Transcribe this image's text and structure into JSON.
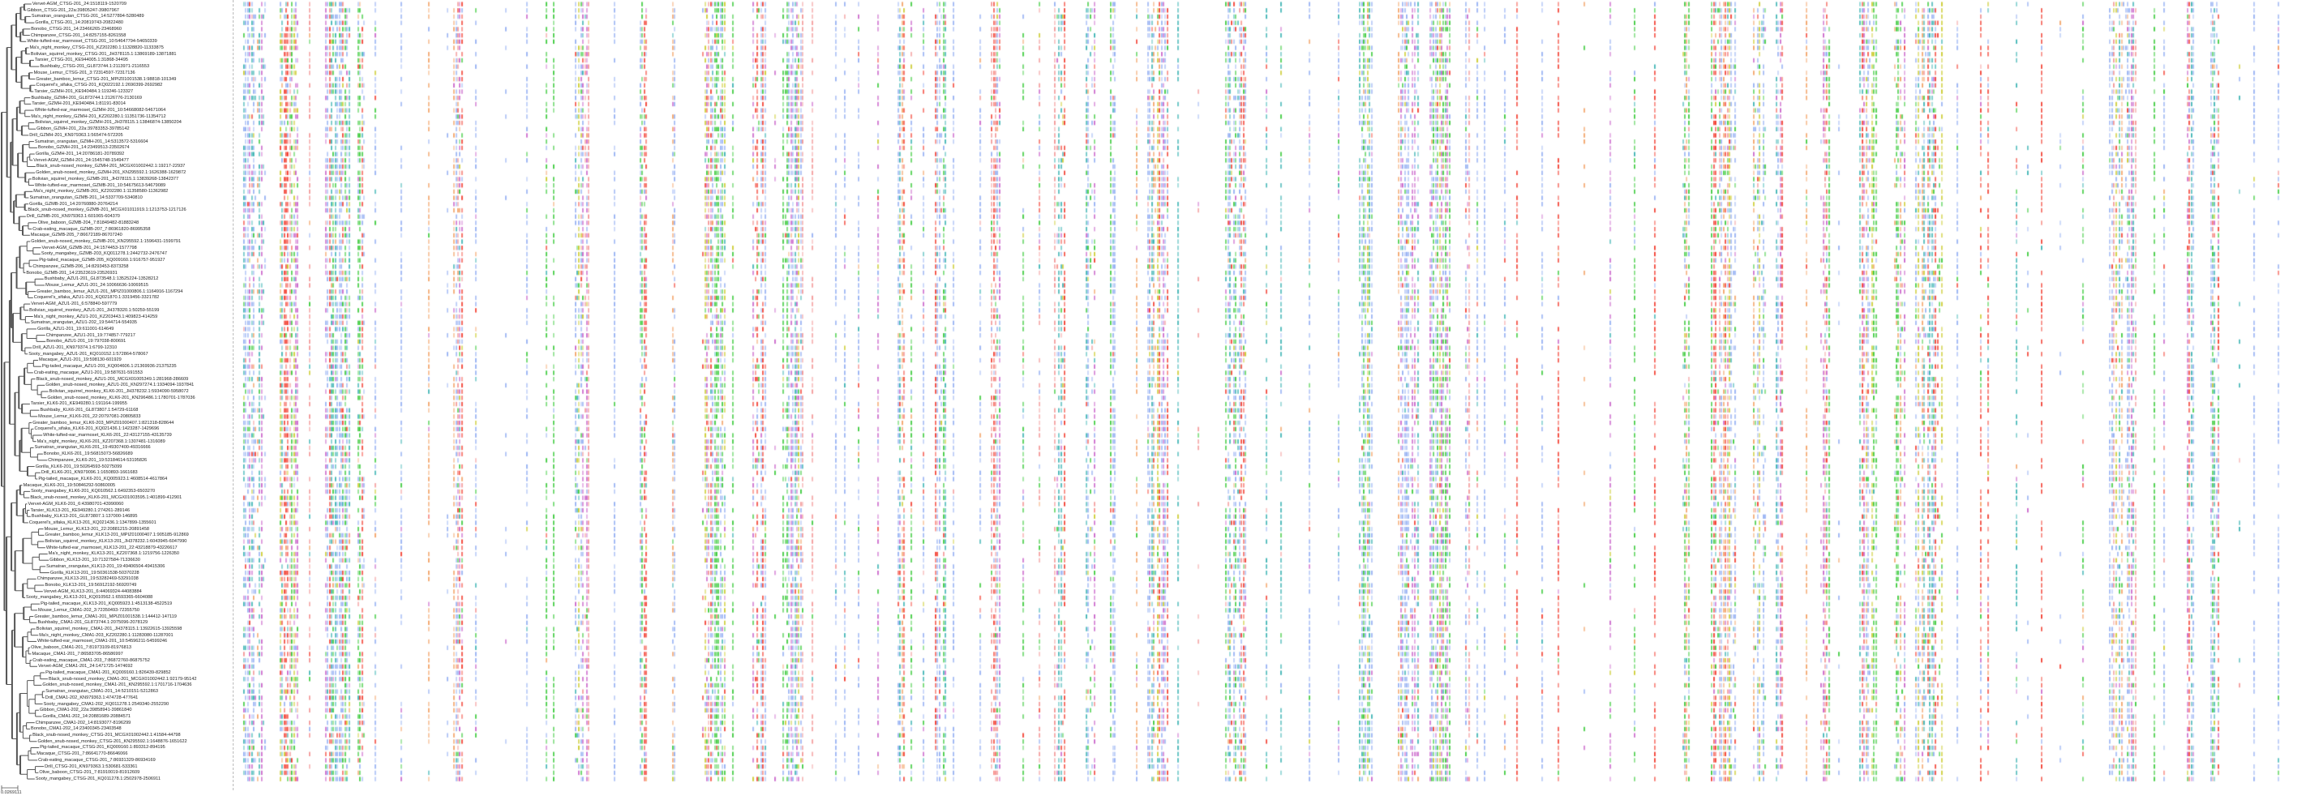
{
  "scale_bar": "0.0269111",
  "colors": {
    "branch": "#555555",
    "node": "#2233cc",
    "A": "#80a0f0",
    "C": "#f08080",
    "D": "#c048c0",
    "E": "#c048c0",
    "G": "#f09048",
    "H": "#15a4a4",
    "I": "#80a0f0",
    "K": "#f01505",
    "L": "#80a0f0",
    "M": "#80a0f0",
    "N": "#15c015",
    "P": "#c0c000",
    "Q": "#15c015",
    "R": "#f01505",
    "S": "#15c015",
    "T": "#15c015",
    "V": "#80a0f0",
    "W": "#80a0f0",
    "Y": "#15a4a4"
  },
  "leaves": [
    "Vervet-AGM_CTSG-201_24:1518119-1520709",
    "Gibbon_CTSG-201_22a:39805247-39807967",
    "Sumatran_orangutan_CTSG-201_14:5277894-5280489",
    "Gorilla_CTSG-201_14:20819743-20822480",
    "Bonobo_CTSG-201_14:23466265-23468960",
    "Chimpanzee_CTSG-201_14:8257155-8261558",
    "White-tufted-ear_marmoset_CTSG-201_10:54647794-54650339",
    "Ma's_night_monkey_CTSG-201_KZ202280.1:11328820-11333875",
    "Bolivian_squirrel_monkey_CTSG-201_JH378115.1:13869189-13871881",
    "Tarsier_CTSG-201_KE944005.1:31868-34495",
    "Bushbaby_CTSG-201_GL873744.1:2113971-2116553",
    "Mouse_Lemur_CTSG-201_3:72314597-72317136",
    "Greater_bamboo_lemur_CTSG-201_MPIZ01001538.1:98818-101349",
    "Coquerel's_sifaka_CTSG-201_KQ022192.1:2690399-2692982",
    "Tarsier_GZMH-201_KE940484.1:119246-123327",
    "Bushbaby_GZMH-201_GL873744.1:2126776-2130169",
    "Tarsier_GZMH-201_KE940484.1:81191-83014",
    "White-tufted-ear_marmoset_GZMH-201_10:54668082-54671064",
    "Ma's_night_monkey_GZMH-201_KZ202280.1:11351736-11354712",
    "Bolivian_squirrel_monkey_GZMH-201_JH378115.1:13846874-13850204",
    "Gibbon_GZMH-201_22a:39783353-39785142",
    "Drill_GZMH-201_KN979363.1:565474-572205",
    "Sumatran_orangutan_GZMH-201_14:5313572-5316604",
    "Bonobo_GZMH-201_14:23499513-23502674",
    "Gorilla_GZMH-201_14:20786181-20789392",
    "Vervet-AGM_GZMH-201_24:1545748-1549477",
    "Black_snub-nosed_monkey_GZMH-201_MCGX01002442.1:19217-22937",
    "Golden_snub-nosed_monkey_GZMH-201_KN295592.1:1626388-1629872",
    "Bolivian_squirrel_monkey_GZMB-201_JH378115.1:13839268-13842377",
    "White-tufted-ear_marmoset_GZMB-201_10:54675613-54679089",
    "Ma's_night_monkey_GZMB-201_KZ202280.1:11358580-11362982",
    "Sumatran_orangutan_GZMB-201_14:5337709-5340810",
    "Gorilla_GZMB-201_14:20760880-20764214",
    "Black_snub-nosed_monkey_GZMB-201_MCGX01011919.1:1213753-1217126",
    "Drill_GZMB-201_KN979363.1:601065-604370",
    "Olive_baboon_GZMB-204_7:81849482-81883248",
    "Crab-eating_macaque_GZMB-207_7:86961820-86995358",
    "Macaque_GZMB-205_7:86672189-86707240",
    "Golden_snub-nosed_monkey_GZMB-201_KN295592.1:1596431-1599791",
    "Vervet-AGM_GZMB-201_24:1574453-1577798",
    "Sooty_mangabey_GZMB-203_KQ011278.1:2442732-2476747",
    "Pig-tailed_macaque_GZMB-205_KQ009160.1:916757-951927",
    "Chimpanzee_GZMB-206_14:8293453-8373258",
    "Bonobo_GZMB-201_14:23523619-23526931",
    "Bushbaby_AZU1-201_GL873548.1:13525224-13528212",
    "Mouse_Lemur_AZU1-201_24:10066636-10069515",
    "Greater_bamboo_lemur_AZU1-201_MPIZ01000806.1:1164916-1167294",
    "Coquerel's_sifaka_AZU1-201_KQ021870.1:3319456-3321782",
    "Vervet-AGM_AZU1-201_6:578840-597779",
    "Bolivian_squirrel_monkey_AZU1-201_JH378320.1:50259-55199",
    "Ma's_night_monkey_AZU1-201_KZ203443.1:409823-414259",
    "Sumatran_orangutan_AZU1-202_19:544714-554935",
    "Gorilla_AZU1-201_19:611001-614649",
    "Chimpanzee_AZU1-201_19:774857-779217",
    "Bonobo_AZU1-201_19:797038-800691",
    "Drill_AZU1-201_KN979374.1:6799-12310",
    "Sooty_mangabey_AZU1-201_KQ010152.1:572864-578067",
    "Macaque_AZU1-201_19:598130-601929",
    "Pig-tailed_macaque_AZU1-201_KQ004606.1:21369936-21375235",
    "Crab-eating_macaque_AZU1-201_19:587631-591553",
    "Black_snub-nosed_monkey_AZU1-201_MCGX01005349.1:281968-286609",
    "Golden_snub-nosed_monkey_AZU1-201_KN297274.1:1934094-1937841",
    "Bolivian_squirrel_monkey_KLK6-201_JH378232.1:5934090-5958072",
    "Golden_snub-nosed_monkey_KLK6-201_KN296486.1:1780701-1787036",
    "Tarsier_KLK6-201_KE949280.1:191164-199955",
    "Bushbaby_KLK6-201_GL873807.1:54729-61168",
    "Mouse_Lemur_KLK6-201_22:20797081-20805833",
    "Greater_bamboo_lemur_KLK6-203_MPIZ01000407.1:821318-828644",
    "Coquerel's_sifaka_KLK6-201_KQ021436.1:1423287-1429696",
    "White-tufted-ear_marmoset_KLK6-201_22:43127155-43135739",
    "Ma's_night_monkey_KLK6-201_KZ207368.1:1307481-1316089",
    "Sumatran_orangutan_KLK6-201_19:49307400-49316666",
    "Bonobo_KLK6-201_19:56815073-56826689",
    "Chimpanzee_KLK6-201_19:53184614-53195826",
    "Gorilla_KLK6-201_19:50264593-50275099",
    "Drill_KLK6-201_KN979096.1:1650893-1661683",
    "Pig-tailed_macaque_KLK6-201_KQ005923.1:4608514-4617864",
    "Macaque_KLK6-201_19:50846292-50860005",
    "Sooty_mangabey_KLK6-201_KQ010562.1:6492353-6503270",
    "Black_snub-nosed_monkey_KLK6-201_MCGX01003595.1:401899-412901",
    "Vervet-AGM_KLK6-201_6:43980701-43990060",
    "Tarsier_KLK13-201_KE949280.1:274261-289146",
    "Bushbaby_KLK13-201_GL873807.1:137000-146895",
    "Coquerel's_sifaka_KLK13-201_KQ021436.1:1347899-1355601",
    "Mouse_Lemur_KLK13-201_22:20881215-20891458",
    "Greater_bamboo_lemur_KLK13-201_MPIZ01000407.1:905185-912869",
    "Bolivian_squirrel_monkey_KLK13-201_JH378232.1:6043945-6047990",
    "White-tufted-ear_marmoset_KLK13-201_22:43218879-43226617",
    "Ma's_night_monkey_KLK13-201_KZ207368.1:1219756-1226350",
    "Gibbon_KLK13-201_10:71327584-71336630",
    "Sumatran_orangutan_KLK13-201_19:49406504-49415306",
    "Gorilla_KLK13-201_19:50361538-50370228",
    "Chimpanzee_KLK13-201_19:53282469-53291038",
    "Bonobo_KLK13-201_19:56912192-56920749",
    "Vervet-AGM_KLK13-201_6:44069324-44083884",
    "Sooty_mangabey_KLK13-201_KQ010562.1:6593365-6604088",
    "Pig-tailed_macaque_KLK13-201_KQ005923.1:4513138-4522519",
    "Mouse_Lemur_CMA1-202_3:72350493-72355750",
    "Greater_bamboo_lemur_CMA1-201_MPIZ01001538.1:144412-147119",
    "Bushbaby_CMA1-201_GL873744.1:2075096-2078129",
    "Bolivian_squirrel_monkey_CMA1-201_JH378115.1:13922615-13925598",
    "Ma's_night_monkey_CMA1-203_KZ202280.1:11283080-11287001",
    "White-tufted-ear_marmoset_CMA1-201_10:54596211-54599246",
    "Olive_baboon_CMA1-201_7:81973109-81976813",
    "Macaque_CMA1-201_7:86583705-86586997",
    "Crab-eating_macaque_CMA1-203_7:86872760-86875752",
    "Vervet-AGM_CMA1-201_24:1471725-1474692",
    "Pig-tailed_macaque_CMA1-201_KQ009160.1:826439-829852",
    "Black_snub-nosed_monkey_CMA1-201_MCGX01002442.1:92179-95142",
    "Golden_snub-nosed_monkey_CMA1-201_KN295592.1:1701716-1704636",
    "Sumatran_orangutan_CMA1-201_14:5210151-5212863",
    "Drill_CMA1-202_KN979363.1:474728-477641",
    "Sooty_mangabey_CMA1-202_KQ011278.1:2549340-2552290",
    "Gibbon_CMA1-202_22a:39858941-39861840",
    "Gorilla_CMA1-202_14:20881689-20884571",
    "Chimpanzee_CMA1-202_14:8193077-8196299",
    "Bonobo_CMA1-202_14:23400345-23403548",
    "Black_snub-nosed_monkey_CTSG-201_MCGX01002442.1:41584-44798",
    "Golden_snub-nosed_monkey_CTSG-201_KN295592.1:1648876-1651622",
    "Pig-tailed_macaque_CTSG-201_KQ009160.1:893312-894195",
    "Macaque_CTSG-201_7:86641770-86646066",
    "Crab-eating_macaque_CTSG-201_7:86931329-86934169",
    "Drill_CTSG-201_KN979363.1:530681-533361",
    "Olive_baboon_CTSG-201_7:81910019-81912609",
    "Sooty_mangabey_CTSG-201_KQ011278.1:2502978-2506911"
  ]
}
